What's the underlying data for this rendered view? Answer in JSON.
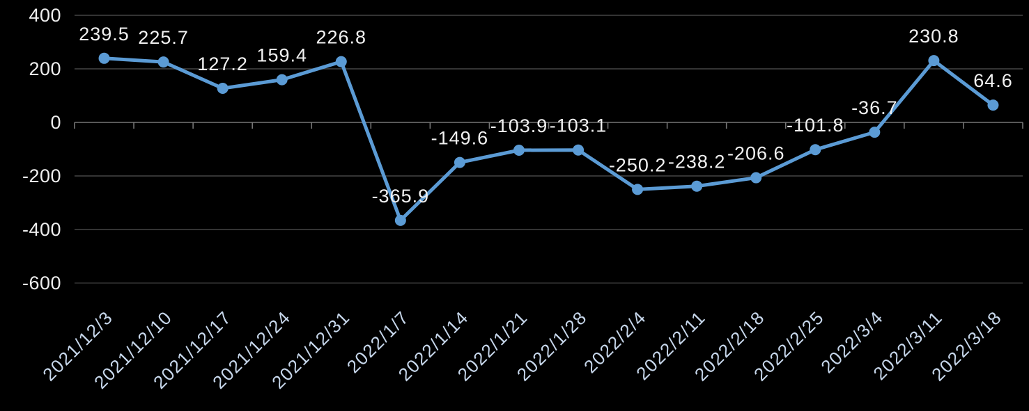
{
  "chart_data": {
    "type": "line",
    "title": "",
    "xlabel": "",
    "ylabel": "",
    "categories": [
      "2021/12/3",
      "2021/12/10",
      "2021/12/17",
      "2021/12/24",
      "2021/12/31",
      "2022/1/7",
      "2022/1/14",
      "2022/1/21",
      "2022/1/28",
      "2022/2/4",
      "2022/2/11",
      "2022/2/18",
      "2022/2/25",
      "2022/3/4",
      "2022/3/11",
      "2022/3/18"
    ],
    "values": [
      239.5,
      225.7,
      127.2,
      159.4,
      226.8,
      -365.9,
      -149.6,
      -103.9,
      -103.1,
      -250.2,
      -238.2,
      -206.6,
      -101.8,
      -36.7,
      230.8,
      64.6
    ],
    "data_labels": [
      "239.5",
      "225.7",
      "127.2",
      "159.4",
      "226.8",
      "-365.9",
      "-149.6",
      "-103.9",
      "-103.1",
      "-250.2",
      "-238.2",
      "-206.6",
      "-101.8",
      "-36.7",
      "230.8",
      "64.6"
    ],
    "ylim": [
      -600,
      400
    ],
    "yticks": [
      400,
      200,
      0,
      -200,
      -400,
      -600
    ],
    "ytick_labels": [
      "400",
      "200",
      "0",
      "-200",
      "-400",
      "-600"
    ],
    "x_label_rotation": -45,
    "grid": true,
    "legend": "none",
    "marker": "circle",
    "style": {
      "background_color": "#000000",
      "line_color": "#5B9BD5",
      "marker_color": "#5B9BD5",
      "gridline_color": "#464646",
      "bottom_gridline_color": "#333333",
      "axis_line_color": "#757575",
      "data_label_color": "#f1f1f1",
      "ytick_label_color": "#eeeeee",
      "xtick_label_color": "#c7d7eb"
    }
  }
}
